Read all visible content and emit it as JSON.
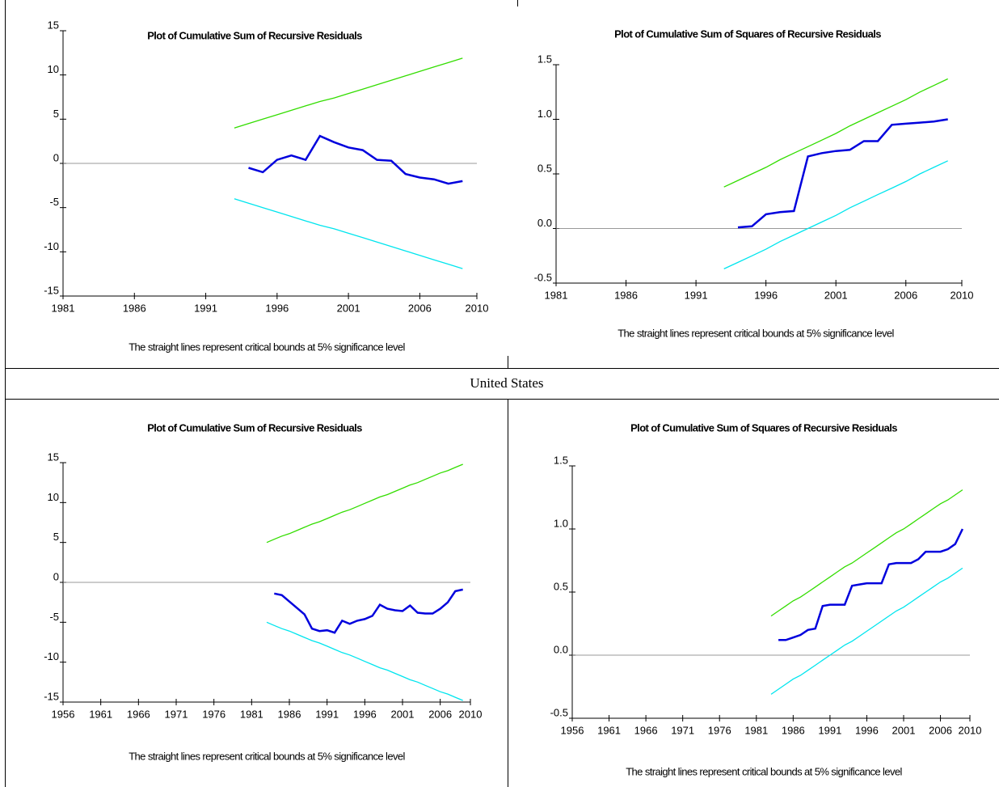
{
  "caption": "United States",
  "chart_data": [
    {
      "type": "line",
      "title": "Plot of Cumulative Sum of Recursive Residuals",
      "note": "The straight lines represent critical bounds at 5% significance level",
      "xlim": [
        1981,
        2010
      ],
      "xticks": [
        1981,
        1986,
        1991,
        1996,
        2001,
        2006,
        2010
      ],
      "ylim": [
        -15,
        15
      ],
      "yticks": [
        -15,
        -10,
        -5,
        0,
        5,
        10,
        15
      ],
      "zero_line": true,
      "x": [
        1993,
        1994,
        1995,
        1996,
        1997,
        1998,
        1999,
        2000,
        2001,
        2002,
        2003,
        2004,
        2005,
        2006,
        2007,
        2008,
        2009
      ],
      "series": [
        {
          "color": "#0000dd",
          "values": [
            null,
            -0.5,
            -1.0,
            0.4,
            0.9,
            0.4,
            3.1,
            2.4,
            1.8,
            1.5,
            0.4,
            0.3,
            -1.2,
            -1.6,
            -1.8,
            -2.3,
            -2.0
          ]
        },
        {
          "color": "#33dd00",
          "values": [
            4.0,
            4.5,
            5.0,
            5.5,
            6.0,
            6.5,
            7.0,
            7.4,
            7.9,
            8.4,
            8.9,
            9.4,
            9.9,
            10.4,
            10.9,
            11.4,
            11.9
          ]
        },
        {
          "color": "#00e5ee",
          "values": [
            -4.0,
            -4.5,
            -5.0,
            -5.5,
            -6.0,
            -6.5,
            -7.0,
            -7.4,
            -7.9,
            -8.4,
            -8.9,
            -9.4,
            -9.9,
            -10.4,
            -10.9,
            -11.4,
            -11.9
          ]
        }
      ]
    },
    {
      "type": "line",
      "title": "Plot of Cumulative Sum of Squares of Recursive Residuals",
      "note": "The straight lines represent critical bounds at 5% significance level",
      "xlim": [
        1981,
        2010
      ],
      "xticks": [
        1981,
        1986,
        1991,
        1996,
        2001,
        2006,
        2010
      ],
      "ylim": [
        -0.5,
        1.5
      ],
      "yticks": [
        -0.5,
        {
          "value": 0,
          "label": "0.0"
        },
        0.5,
        {
          "value": 1,
          "label": "1.0"
        },
        1.5
      ],
      "zero_line": true,
      "x": [
        1993,
        1994,
        1995,
        1996,
        1997,
        1998,
        1999,
        2000,
        2001,
        2002,
        2003,
        2004,
        2005,
        2006,
        2007,
        2008,
        2009
      ],
      "series": [
        {
          "color": "#0000dd",
          "values": [
            null,
            0.01,
            0.02,
            0.13,
            0.15,
            0.16,
            0.66,
            0.69,
            0.71,
            0.72,
            0.8,
            0.8,
            0.95,
            0.96,
            0.97,
            0.98,
            1.0
          ]
        },
        {
          "color": "#33dd00",
          "values": [
            0.38,
            0.44,
            0.5,
            0.56,
            0.63,
            0.69,
            0.75,
            0.81,
            0.87,
            0.94,
            1.0,
            1.06,
            1.12,
            1.18,
            1.25,
            1.31,
            1.37
          ]
        },
        {
          "color": "#00e5ee",
          "values": [
            -0.37,
            -0.31,
            -0.25,
            -0.19,
            -0.12,
            -0.06,
            0.0,
            0.06,
            0.12,
            0.19,
            0.25,
            0.31,
            0.37,
            0.43,
            0.5,
            0.56,
            0.62
          ]
        }
      ]
    },
    {
      "type": "line",
      "title": "Plot of Cumulative Sum of Recursive Residuals",
      "note": "The straight lines represent critical bounds at 5% significance level",
      "xlim": [
        1956,
        2010
      ],
      "xticks": [
        1956,
        1961,
        1966,
        1971,
        1976,
        1981,
        1986,
        1991,
        1996,
        2001,
        2006,
        2010
      ],
      "ylim": [
        -15,
        15
      ],
      "yticks": [
        -15,
        -10,
        -5,
        0,
        5,
        10,
        15
      ],
      "zero_line": true,
      "x": [
        1983,
        1984,
        1985,
        1986,
        1987,
        1988,
        1989,
        1990,
        1991,
        1992,
        1993,
        1994,
        1995,
        1996,
        1997,
        1998,
        1999,
        2000,
        2001,
        2002,
        2003,
        2004,
        2005,
        2006,
        2007,
        2008,
        2009
      ],
      "series": [
        {
          "color": "#0000dd",
          "values": [
            null,
            -1.4,
            -1.6,
            -2.4,
            -3.2,
            -4.0,
            -5.8,
            -6.1,
            -6.0,
            -6.3,
            -4.8,
            -5.2,
            -4.8,
            -4.6,
            -4.2,
            -2.8,
            -3.3,
            -3.5,
            -3.6,
            -2.9,
            -3.8,
            -3.9,
            -3.9,
            -3.3,
            -2.5,
            -1.1,
            -0.9
          ]
        },
        {
          "color": "#33dd00",
          "values": [
            5.0,
            5.4,
            5.8,
            6.1,
            6.5,
            6.9,
            7.3,
            7.6,
            8.0,
            8.4,
            8.8,
            9.1,
            9.5,
            9.9,
            10.3,
            10.7,
            11.0,
            11.4,
            11.8,
            12.2,
            12.5,
            12.9,
            13.3,
            13.7,
            14.0,
            14.4,
            14.8
          ]
        },
        {
          "color": "#00e5ee",
          "values": [
            -5.0,
            -5.4,
            -5.8,
            -6.1,
            -6.5,
            -6.9,
            -7.3,
            -7.6,
            -8.0,
            -8.4,
            -8.8,
            -9.1,
            -9.5,
            -9.9,
            -10.3,
            -10.7,
            -11.0,
            -11.4,
            -11.8,
            -12.2,
            -12.5,
            -12.9,
            -13.3,
            -13.7,
            -14.0,
            -14.4,
            -14.8
          ]
        }
      ]
    },
    {
      "type": "line",
      "title": "Plot of Cumulative Sum of Squares of Recursive Residuals",
      "note": "The straight lines represent critical bounds at 5% significance level",
      "xlim": [
        1956,
        2010
      ],
      "xticks": [
        1956,
        1961,
        1966,
        1971,
        1976,
        1981,
        1986,
        1991,
        1996,
        2001,
        2006,
        2010
      ],
      "ylim": [
        -0.5,
        1.5
      ],
      "yticks": [
        -0.5,
        {
          "value": 0,
          "label": "0.0"
        },
        0.5,
        {
          "value": 1,
          "label": "1.0"
        },
        1.5
      ],
      "zero_line": true,
      "x": [
        1983,
        1984,
        1985,
        1986,
        1987,
        1988,
        1989,
        1990,
        1991,
        1992,
        1993,
        1994,
        1995,
        1996,
        1997,
        1998,
        1999,
        2000,
        2001,
        2002,
        2003,
        2004,
        2005,
        2006,
        2007,
        2008,
        2009
      ],
      "series": [
        {
          "color": "#0000dd",
          "values": [
            null,
            0.12,
            0.12,
            0.14,
            0.16,
            0.2,
            0.21,
            0.39,
            0.4,
            0.4,
            0.4,
            0.55,
            0.56,
            0.57,
            0.57,
            0.57,
            0.72,
            0.73,
            0.73,
            0.73,
            0.76,
            0.82,
            0.82,
            0.82,
            0.84,
            0.88,
            1.0
          ]
        },
        {
          "color": "#33dd00",
          "values": [
            0.31,
            0.35,
            0.39,
            0.43,
            0.46,
            0.5,
            0.54,
            0.58,
            0.62,
            0.66,
            0.7,
            0.73,
            0.77,
            0.81,
            0.85,
            0.89,
            0.93,
            0.97,
            1.0,
            1.04,
            1.08,
            1.12,
            1.16,
            1.2,
            1.23,
            1.27,
            1.31
          ]
        },
        {
          "color": "#00e5ee",
          "values": [
            -0.31,
            -0.27,
            -0.23,
            -0.19,
            -0.16,
            -0.12,
            -0.08,
            -0.04,
            0.0,
            0.04,
            0.08,
            0.11,
            0.15,
            0.19,
            0.23,
            0.27,
            0.31,
            0.35,
            0.38,
            0.42,
            0.46,
            0.5,
            0.54,
            0.58,
            0.61,
            0.65,
            0.69
          ]
        }
      ]
    }
  ]
}
